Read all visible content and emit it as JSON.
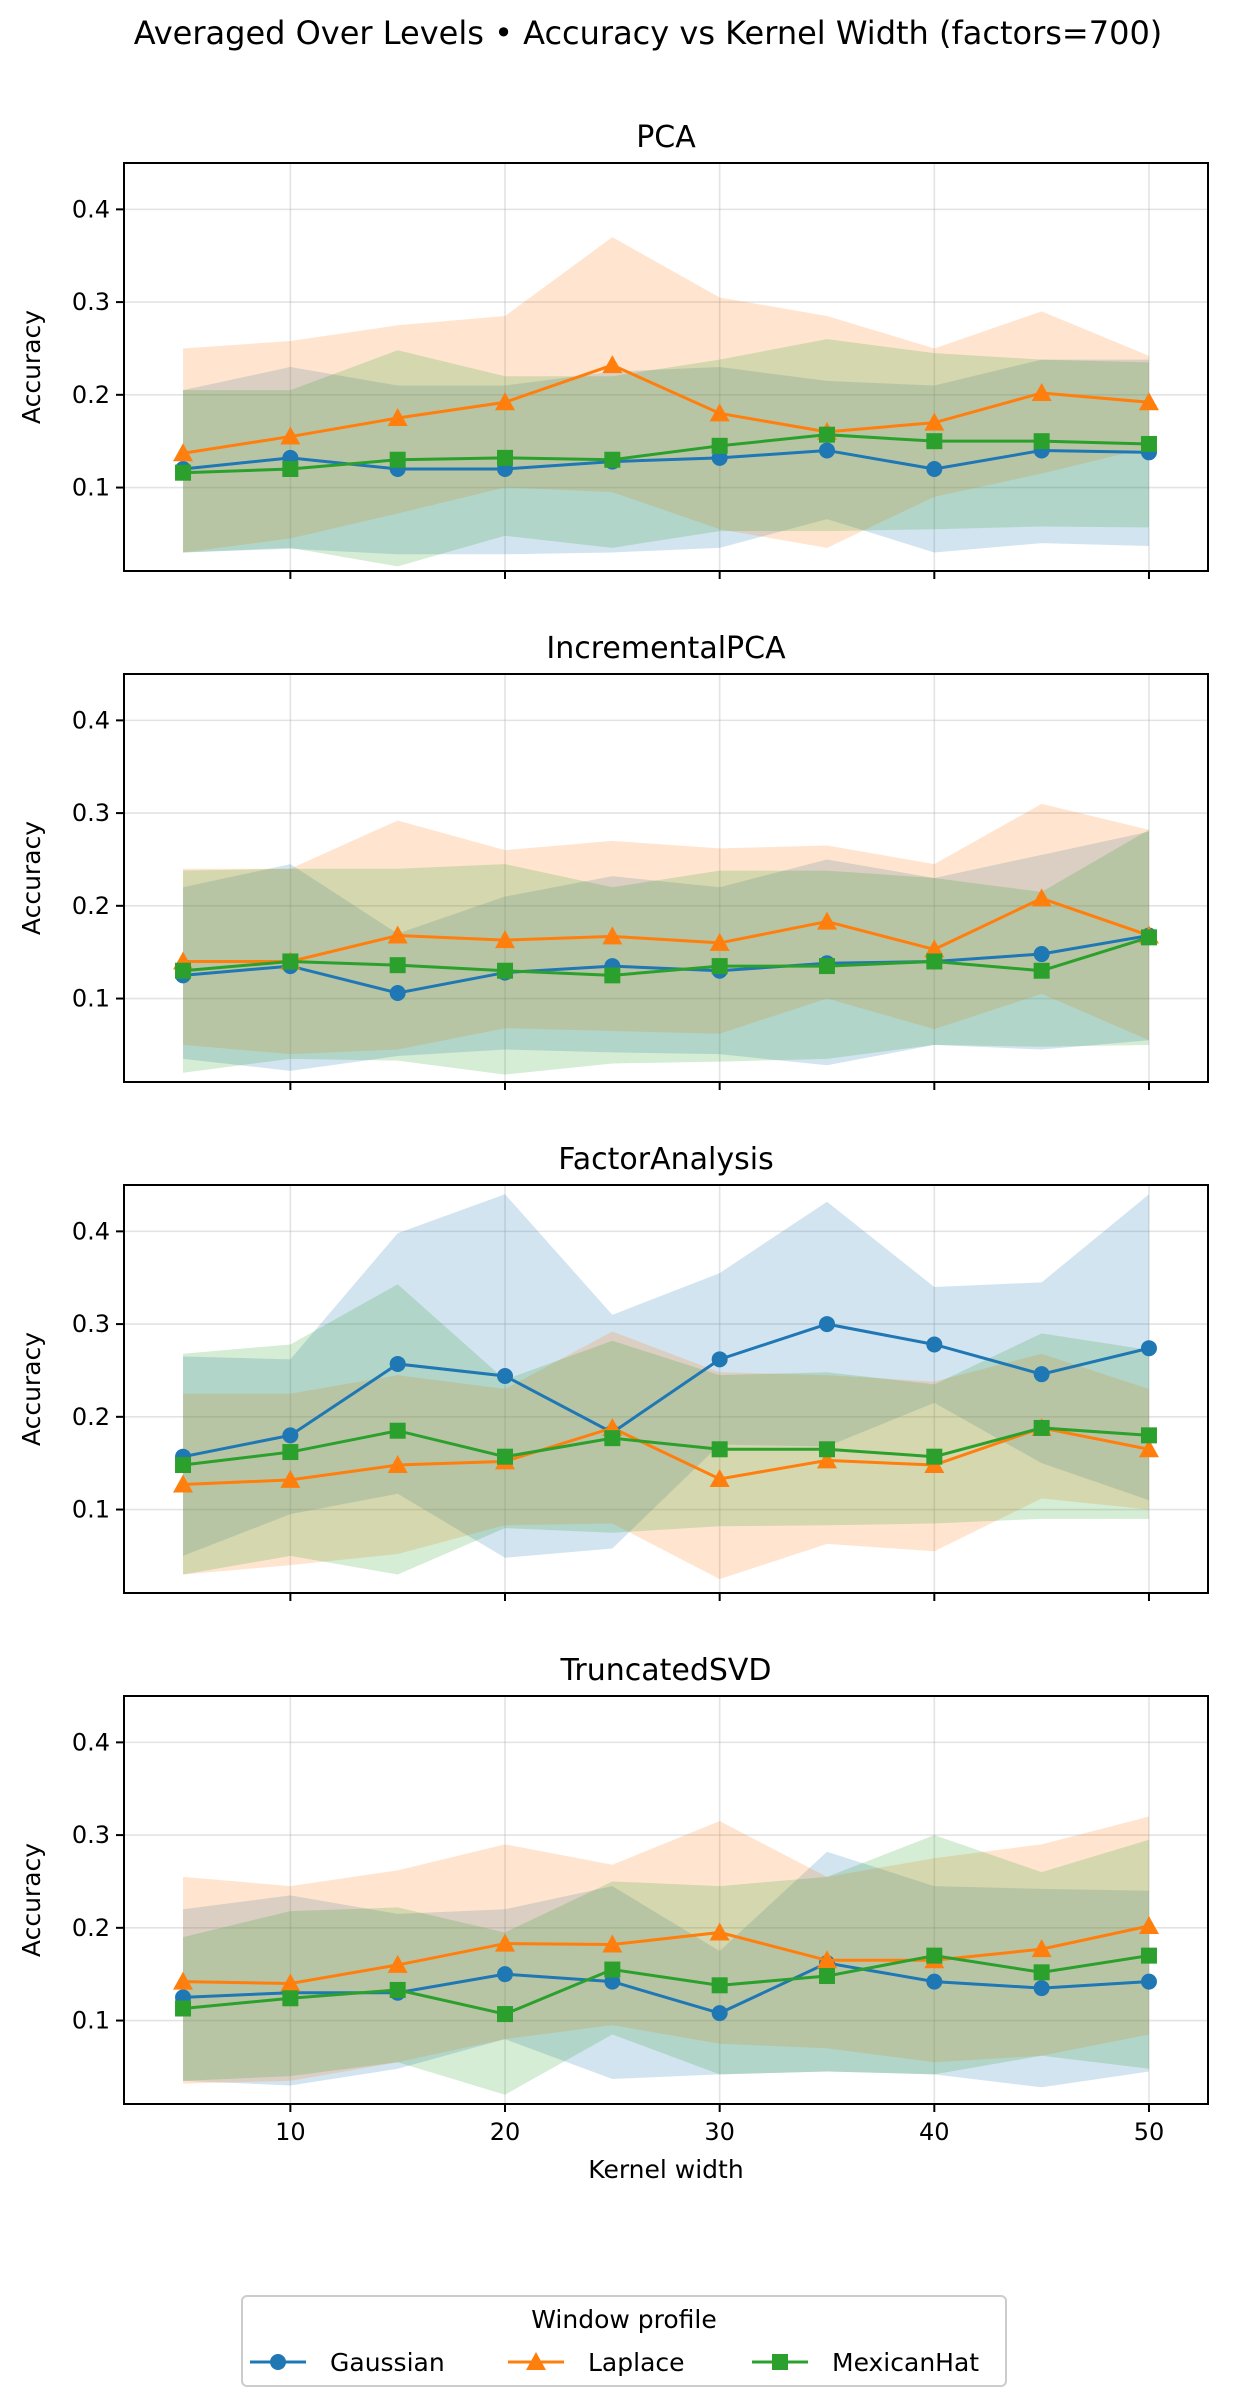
{
  "figure": {
    "suptitle": "Averaged Over Levels • Accuracy vs Kernel Width (factors=700)"
  },
  "legend": {
    "title": "Window profile",
    "entries": [
      "Gaussian",
      "Laplace",
      "MexicanHat"
    ]
  },
  "colors": {
    "Gaussian": "#1f77b4",
    "Laplace": "#ff7f0e",
    "MexicanHat": "#2ca02c"
  },
  "markers": {
    "Gaussian": "circle",
    "Laplace": "triangle",
    "MexicanHat": "square"
  },
  "chart_data": [
    {
      "type": "line",
      "title": "PCA",
      "xlabel": "",
      "ylabel": "Accuracy",
      "x": [
        5,
        10,
        15,
        20,
        25,
        30,
        35,
        40,
        45,
        50
      ],
      "xlim": [
        2.25,
        52.75
      ],
      "ylim": [
        0.01,
        0.45
      ],
      "xticks": [
        10,
        20,
        30,
        40,
        50
      ],
      "yticks": [
        0.1,
        0.2,
        0.3,
        0.4
      ],
      "grid": true,
      "series": [
        {
          "name": "Gaussian",
          "values": [
            0.12,
            0.132,
            0.12,
            0.12,
            0.128,
            0.132,
            0.14,
            0.12,
            0.14,
            0.138
          ],
          "upper": [
            0.205,
            0.23,
            0.21,
            0.21,
            0.225,
            0.23,
            0.215,
            0.21,
            0.238,
            0.238
          ],
          "lower": [
            0.03,
            0.034,
            0.028,
            0.028,
            0.03,
            0.035,
            0.066,
            0.03,
            0.04,
            0.037
          ]
        },
        {
          "name": "Laplace",
          "values": [
            0.137,
            0.155,
            0.175,
            0.192,
            0.232,
            0.18,
            0.16,
            0.17,
            0.202,
            0.192
          ],
          "upper": [
            0.25,
            0.258,
            0.275,
            0.285,
            0.37,
            0.305,
            0.285,
            0.25,
            0.29,
            0.242
          ],
          "lower": [
            0.03,
            0.045,
            0.072,
            0.1,
            0.095,
            0.055,
            0.035,
            0.09,
            0.115,
            0.143
          ]
        },
        {
          "name": "MexicanHat",
          "values": [
            0.116,
            0.12,
            0.13,
            0.132,
            0.13,
            0.145,
            0.157,
            0.15,
            0.15,
            0.147
          ],
          "upper": [
            0.205,
            0.205,
            0.248,
            0.22,
            0.22,
            0.238,
            0.26,
            0.245,
            0.238,
            0.235
          ],
          "lower": [
            0.03,
            0.035,
            0.015,
            0.048,
            0.035,
            0.053,
            0.053,
            0.055,
            0.058,
            0.057
          ]
        }
      ]
    },
    {
      "type": "line",
      "title": "IncrementalPCA",
      "xlabel": "",
      "ylabel": "Accuracy",
      "x": [
        5,
        10,
        15,
        20,
        25,
        30,
        35,
        40,
        45,
        50
      ],
      "xlim": [
        2.25,
        52.75
      ],
      "ylim": [
        0.01,
        0.45
      ],
      "xticks": [
        10,
        20,
        30,
        40,
        50
      ],
      "yticks": [
        0.1,
        0.2,
        0.3,
        0.4
      ],
      "grid": true,
      "series": [
        {
          "name": "Gaussian",
          "values": [
            0.125,
            0.135,
            0.106,
            0.128,
            0.135,
            0.13,
            0.138,
            0.14,
            0.148,
            0.168
          ],
          "upper": [
            0.22,
            0.245,
            0.17,
            0.21,
            0.232,
            0.22,
            0.25,
            0.23,
            0.255,
            0.28
          ],
          "lower": [
            0.035,
            0.022,
            0.038,
            0.045,
            0.042,
            0.04,
            0.028,
            0.05,
            0.045,
            0.055
          ]
        },
        {
          "name": "Laplace",
          "values": [
            0.14,
            0.14,
            0.168,
            0.163,
            0.167,
            0.16,
            0.183,
            0.153,
            0.208,
            0.168
          ],
          "upper": [
            0.24,
            0.24,
            0.292,
            0.26,
            0.27,
            0.262,
            0.265,
            0.245,
            0.31,
            0.282
          ],
          "lower": [
            0.05,
            0.04,
            0.045,
            0.068,
            0.065,
            0.062,
            0.1,
            0.067,
            0.105,
            0.055
          ]
        },
        {
          "name": "MexicanHat",
          "values": [
            0.13,
            0.14,
            0.136,
            0.13,
            0.125,
            0.135,
            0.135,
            0.14,
            0.13,
            0.166
          ],
          "upper": [
            0.238,
            0.24,
            0.24,
            0.245,
            0.22,
            0.238,
            0.238,
            0.23,
            0.215,
            0.282
          ],
          "lower": [
            0.02,
            0.035,
            0.033,
            0.018,
            0.03,
            0.032,
            0.035,
            0.05,
            0.048,
            0.05
          ]
        }
      ]
    },
    {
      "type": "line",
      "title": "FactorAnalysis",
      "xlabel": "",
      "ylabel": "Accuracy",
      "x": [
        5,
        10,
        15,
        20,
        25,
        30,
        35,
        40,
        45,
        50
      ],
      "xlim": [
        2.25,
        52.75
      ],
      "ylim": [
        0.01,
        0.45
      ],
      "xticks": [
        10,
        20,
        30,
        40,
        50
      ],
      "yticks": [
        0.1,
        0.2,
        0.3,
        0.4
      ],
      "grid": true,
      "series": [
        {
          "name": "Gaussian",
          "values": [
            0.157,
            0.18,
            0.257,
            0.244,
            0.183,
            0.262,
            0.3,
            0.278,
            0.246,
            0.274
          ],
          "upper": [
            0.265,
            0.262,
            0.398,
            0.44,
            0.31,
            0.355,
            0.432,
            0.34,
            0.345,
            0.44
          ],
          "lower": [
            0.05,
            0.095,
            0.117,
            0.048,
            0.058,
            0.17,
            0.168,
            0.215,
            0.15,
            0.11
          ]
        },
        {
          "name": "Laplace",
          "values": [
            0.127,
            0.132,
            0.148,
            0.152,
            0.188,
            0.133,
            0.153,
            0.148,
            0.188,
            0.165
          ],
          "upper": [
            0.225,
            0.225,
            0.245,
            0.23,
            0.292,
            0.248,
            0.245,
            0.238,
            0.268,
            0.23
          ],
          "lower": [
            0.03,
            0.04,
            0.052,
            0.083,
            0.085,
            0.025,
            0.063,
            0.055,
            0.112,
            0.1
          ]
        },
        {
          "name": "MexicanHat",
          "values": [
            0.148,
            0.162,
            0.185,
            0.157,
            0.177,
            0.165,
            0.165,
            0.157,
            0.188,
            0.18
          ],
          "upper": [
            0.268,
            0.278,
            0.343,
            0.24,
            0.282,
            0.245,
            0.248,
            0.235,
            0.29,
            0.272
          ],
          "lower": [
            0.03,
            0.05,
            0.03,
            0.08,
            0.075,
            0.082,
            0.083,
            0.085,
            0.09,
            0.09
          ]
        }
      ]
    },
    {
      "type": "line",
      "title": "TruncatedSVD",
      "xlabel": "Kernel width",
      "ylabel": "Accuracy",
      "x": [
        5,
        10,
        15,
        20,
        25,
        30,
        35,
        40,
        45,
        50
      ],
      "xlim": [
        2.25,
        52.75
      ],
      "ylim": [
        0.01,
        0.45
      ],
      "xticks": [
        10,
        20,
        30,
        40,
        50
      ],
      "yticks": [
        0.1,
        0.2,
        0.3,
        0.4
      ],
      "grid": true,
      "series": [
        {
          "name": "Gaussian",
          "values": [
            0.125,
            0.13,
            0.13,
            0.15,
            0.142,
            0.108,
            0.162,
            0.142,
            0.135,
            0.142
          ],
          "upper": [
            0.22,
            0.235,
            0.215,
            0.22,
            0.245,
            0.175,
            0.282,
            0.245,
            0.242,
            0.24
          ],
          "lower": [
            0.035,
            0.03,
            0.048,
            0.08,
            0.037,
            0.042,
            0.045,
            0.042,
            0.028,
            0.045
          ]
        },
        {
          "name": "Laplace",
          "values": [
            0.142,
            0.14,
            0.16,
            0.183,
            0.182,
            0.195,
            0.165,
            0.165,
            0.177,
            0.202
          ],
          "upper": [
            0.255,
            0.245,
            0.262,
            0.29,
            0.268,
            0.315,
            0.255,
            0.275,
            0.29,
            0.32
          ],
          "lower": [
            0.032,
            0.035,
            0.055,
            0.08,
            0.095,
            0.075,
            0.07,
            0.055,
            0.062,
            0.085
          ]
        },
        {
          "name": "MexicanHat",
          "values": [
            0.113,
            0.124,
            0.133,
            0.107,
            0.155,
            0.138,
            0.148,
            0.17,
            0.152,
            0.17
          ],
          "upper": [
            0.19,
            0.218,
            0.222,
            0.195,
            0.25,
            0.245,
            0.255,
            0.3,
            0.26,
            0.295
          ],
          "lower": [
            0.035,
            0.04,
            0.055,
            0.02,
            0.085,
            0.042,
            0.045,
            0.042,
            0.062,
            0.048
          ]
        }
      ]
    }
  ]
}
